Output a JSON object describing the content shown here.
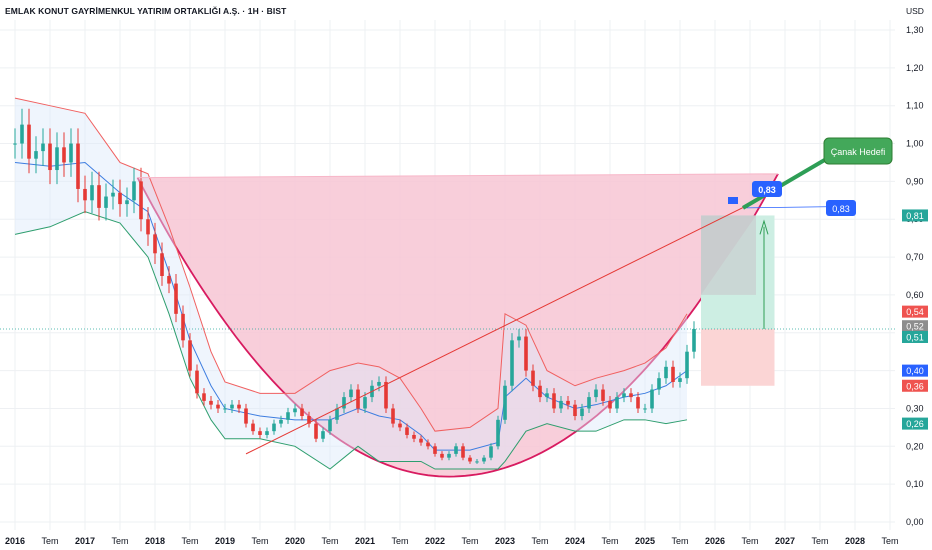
{
  "header": {
    "title": "EMLAK KONUT GAYRİMENKUL YATIRIM ORTAKLIĞI A.Ş. · 1H · BIST",
    "currency": "USD"
  },
  "colors": {
    "price_line_red": "#e53935",
    "price_line_green": "#26a69a",
    "band_red": "#f06060",
    "band_green": "#2e9e6e",
    "mid_blue": "#3d7de0",
    "cup_fill": "#f7c6d3",
    "cup_stroke": "#d81b60",
    "target_box_green": "#cdeee3",
    "target_box_red": "#fbd5d5",
    "target_box_gray": "#c8c8cb",
    "label_green": "#2e9e56",
    "label_blue": "#2962ff"
  },
  "annotations": {
    "cup_target_label": "Çanak Hedefi",
    "target_price_label": "0,83",
    "target_box_label": "0,83"
  },
  "price_badges": [
    {
      "value": 0.81,
      "text": "0,81",
      "color": "#26a69a"
    },
    {
      "value": 0.54,
      "text": "0,54",
      "color": "#ef5350"
    },
    {
      "value": 0.52,
      "text": "0,52",
      "color": "#8d8d8d"
    },
    {
      "value": 0.51,
      "text": "0,51",
      "color": "#26a69a"
    },
    {
      "value": 0.4,
      "text": "0,40",
      "color": "#2962ff"
    },
    {
      "value": 0.36,
      "text": "0,36",
      "color": "#ef5350"
    },
    {
      "value": 0.26,
      "text": "0,26",
      "color": "#26a69a"
    }
  ],
  "chart_data": {
    "type": "line",
    "title": "EMLAK KONUT GAYRİMENKUL YATIRIM ORTAKLIĞI A.Ş. · 1H · BIST",
    "ylim": [
      0,
      1.3
    ],
    "y_ticks": [
      "0,00",
      "0,10",
      "0,20",
      "0,30",
      "0,40",
      "0,50",
      "0,60",
      "0,70",
      "0,80",
      "0,90",
      "1,00",
      "1,10",
      "1,20",
      "1,30"
    ],
    "x_ticks": [
      "2016",
      "Tem",
      "2017",
      "Tem",
      "2018",
      "Tem",
      "2019",
      "Tem",
      "2020",
      "Tem",
      "2021",
      "Tem",
      "2022",
      "Tem",
      "2023",
      "Tem",
      "2024",
      "Tem",
      "2025",
      "Tem",
      "2026",
      "Tem",
      "2027",
      "Tem",
      "2028",
      "Tem"
    ],
    "series": [
      {
        "name": "price",
        "x": [
          2016.0,
          2016.1,
          2016.2,
          2016.3,
          2016.4,
          2016.5,
          2016.6,
          2016.7,
          2016.8,
          2016.9,
          2017.0,
          2017.1,
          2017.2,
          2017.3,
          2017.4,
          2017.5,
          2017.6,
          2017.7,
          2017.8,
          2017.9,
          2018.0,
          2018.1,
          2018.2,
          2018.3,
          2018.4,
          2018.5,
          2018.6,
          2018.7,
          2018.8,
          2018.9,
          2019.0,
          2019.1,
          2019.2,
          2019.3,
          2019.4,
          2019.5,
          2019.6,
          2019.7,
          2019.8,
          2019.9,
          2020.0,
          2020.1,
          2020.2,
          2020.3,
          2020.4,
          2020.5,
          2020.6,
          2020.7,
          2020.8,
          2020.9,
          2021.0,
          2021.1,
          2021.2,
          2021.3,
          2021.4,
          2021.5,
          2021.6,
          2021.7,
          2021.8,
          2021.9,
          2022.0,
          2022.1,
          2022.2,
          2022.3,
          2022.4,
          2022.5,
          2022.6,
          2022.7,
          2022.8,
          2022.9,
          2023.0,
          2023.1,
          2023.2,
          2023.3,
          2023.4,
          2023.5,
          2023.6,
          2023.7,
          2023.8,
          2023.9,
          2024.0,
          2024.1,
          2024.2,
          2024.3,
          2024.4,
          2024.5,
          2024.6,
          2024.7,
          2024.8,
          2024.9,
          2025.0,
          2025.1,
          2025.2,
          2025.3,
          2025.4,
          2025.5,
          2025.6,
          2025.7
        ],
        "values": [
          1.0,
          1.05,
          0.96,
          0.98,
          1.0,
          0.93,
          0.99,
          0.95,
          1.0,
          0.88,
          0.85,
          0.89,
          0.83,
          0.86,
          0.87,
          0.84,
          0.85,
          0.9,
          0.8,
          0.76,
          0.71,
          0.65,
          0.63,
          0.55,
          0.48,
          0.4,
          0.34,
          0.32,
          0.31,
          0.3,
          0.3,
          0.31,
          0.3,
          0.26,
          0.24,
          0.23,
          0.24,
          0.26,
          0.27,
          0.29,
          0.3,
          0.28,
          0.26,
          0.22,
          0.24,
          0.27,
          0.3,
          0.33,
          0.35,
          0.3,
          0.33,
          0.36,
          0.37,
          0.3,
          0.26,
          0.25,
          0.23,
          0.22,
          0.21,
          0.2,
          0.18,
          0.17,
          0.18,
          0.2,
          0.17,
          0.16,
          0.16,
          0.17,
          0.2,
          0.27,
          0.36,
          0.48,
          0.49,
          0.4,
          0.36,
          0.33,
          0.34,
          0.3,
          0.32,
          0.31,
          0.28,
          0.3,
          0.33,
          0.35,
          0.32,
          0.3,
          0.33,
          0.34,
          0.33,
          0.3,
          0.3,
          0.35,
          0.38,
          0.41,
          0.37,
          0.38,
          0.45,
          0.51
        ]
      },
      {
        "name": "upper_band",
        "x": [
          2016.0,
          2016.5,
          2017.0,
          2017.5,
          2017.9,
          2018.2,
          2018.5,
          2018.8,
          2019.0,
          2019.5,
          2020.0,
          2020.5,
          2020.9,
          2021.2,
          2021.5,
          2021.8,
          2022.0,
          2022.5,
          2022.9,
          2023.0,
          2023.3,
          2023.6,
          2024.0,
          2024.3,
          2024.7,
          2025.0,
          2025.3,
          2025.6
        ],
        "values": [
          1.12,
          1.1,
          1.08,
          0.95,
          0.92,
          0.78,
          0.62,
          0.45,
          0.37,
          0.34,
          0.34,
          0.4,
          0.42,
          0.41,
          0.38,
          0.3,
          0.24,
          0.25,
          0.3,
          0.55,
          0.52,
          0.4,
          0.36,
          0.38,
          0.4,
          0.42,
          0.46,
          0.55
        ]
      },
      {
        "name": "lower_band",
        "x": [
          2016.0,
          2016.5,
          2017.0,
          2017.5,
          2017.9,
          2018.2,
          2018.5,
          2018.8,
          2019.0,
          2019.5,
          2020.0,
          2020.5,
          2020.9,
          2021.2,
          2021.5,
          2021.8,
          2022.0,
          2022.5,
          2022.9,
          2023.0,
          2023.3,
          2023.6,
          2024.0,
          2024.3,
          2024.7,
          2025.0,
          2025.3,
          2025.6
        ],
        "values": [
          0.76,
          0.78,
          0.82,
          0.79,
          0.7,
          0.55,
          0.38,
          0.27,
          0.22,
          0.22,
          0.2,
          0.14,
          0.2,
          0.16,
          0.16,
          0.16,
          0.14,
          0.14,
          0.14,
          0.16,
          0.24,
          0.26,
          0.24,
          0.24,
          0.27,
          0.27,
          0.26,
          0.27
        ]
      },
      {
        "name": "mid_band",
        "x": [
          2016.0,
          2016.5,
          2017.0,
          2017.5,
          2017.9,
          2018.2,
          2018.5,
          2018.8,
          2019.0,
          2019.5,
          2020.0,
          2020.5,
          2020.9,
          2021.2,
          2021.5,
          2021.8,
          2022.0,
          2022.5,
          2022.9,
          2023.0,
          2023.3,
          2023.6,
          2024.0,
          2024.3,
          2024.7,
          2025.0,
          2025.3,
          2025.6
        ],
        "values": [
          0.95,
          0.94,
          0.95,
          0.87,
          0.82,
          0.66,
          0.48,
          0.36,
          0.3,
          0.28,
          0.27,
          0.27,
          0.3,
          0.28,
          0.27,
          0.23,
          0.19,
          0.19,
          0.21,
          0.33,
          0.38,
          0.33,
          0.3,
          0.31,
          0.33,
          0.34,
          0.36,
          0.4
        ]
      }
    ],
    "cup": {
      "left_rim_year": 2017.75,
      "left_rim_value": 0.91,
      "bottom_year": 2022.2,
      "bottom_value": 0.12,
      "right_rim_year": 2026.9,
      "right_rim_value": 0.92
    },
    "trend_line": {
      "x": [
        2019.3,
        2026.5
      ],
      "values": [
        0.18,
        0.84
      ]
    },
    "position_tool": {
      "x_start": 2025.8,
      "x_end": 2026.85,
      "entry": 0.51,
      "target": 0.81,
      "stop": 0.36
    },
    "current_price": 0.51
  }
}
